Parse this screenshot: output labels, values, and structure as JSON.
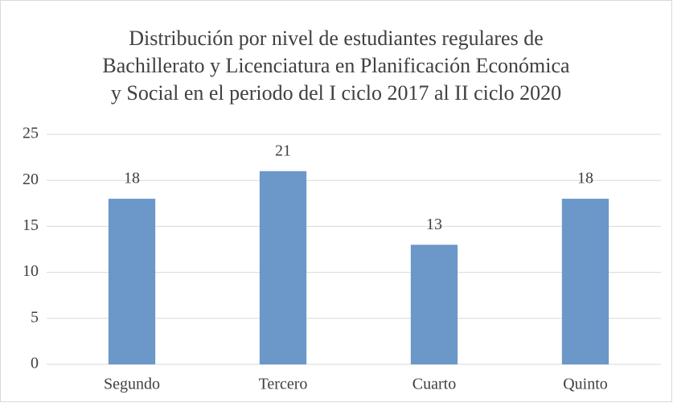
{
  "chart_data": {
    "type": "bar",
    "title": [
      "Distribución por nivel de estudiantes regulares de",
      "Bachillerato y Licenciatura en Planificación Económica",
      "y Social en el periodo del I ciclo 2017 al II ciclo 2020"
    ],
    "categories": [
      "Segundo",
      "Tercero",
      "Cuarto",
      "Quinto"
    ],
    "values": [
      18,
      21,
      13,
      18
    ],
    "color": "#6b97c9",
    "ylim": [
      0,
      25
    ],
    "yticks": [
      0,
      5,
      10,
      15,
      20,
      25
    ],
    "grid": true
  }
}
